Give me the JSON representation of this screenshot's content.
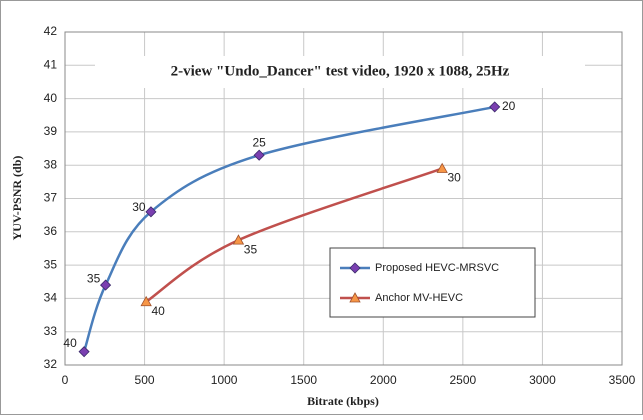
{
  "chart_data": {
    "type": "line",
    "title": "2-view \"Undo_Dancer\"  test video, 1920 x 1088, 25Hz",
    "xlabel": "Bitrate (kbps)",
    "ylabel": "YUV-PSNR (db)",
    "xlim": [
      0,
      3500
    ],
    "xticks": [
      0,
      500,
      1000,
      1500,
      2000,
      2500,
      3000,
      3500
    ],
    "ylim": [
      32,
      42
    ],
    "yticks": [
      32,
      33,
      34,
      35,
      36,
      37,
      38,
      39,
      40,
      41,
      42
    ],
    "grid": true,
    "legend": "lower right",
    "series": [
      {
        "name": "Proposed HEVC-MRSVC",
        "color": "#4a7ebb",
        "marker": "diamond",
        "marker_color": "#7a3fb0",
        "x": [
          120,
          255,
          540,
          1220,
          2700
        ],
        "values": [
          32.4,
          34.4,
          36.6,
          38.3,
          39.75
        ],
        "point_labels": [
          "40",
          "35",
          "30",
          "25",
          "20"
        ]
      },
      {
        "name": "Anchor MV-HEVC",
        "color": "#c0504d",
        "marker": "triangle",
        "marker_color": "#f79646",
        "x": [
          510,
          1090,
          2370
        ],
        "values": [
          33.9,
          35.75,
          37.9
        ],
        "point_labels": [
          "40",
          "35",
          "30"
        ]
      }
    ]
  }
}
